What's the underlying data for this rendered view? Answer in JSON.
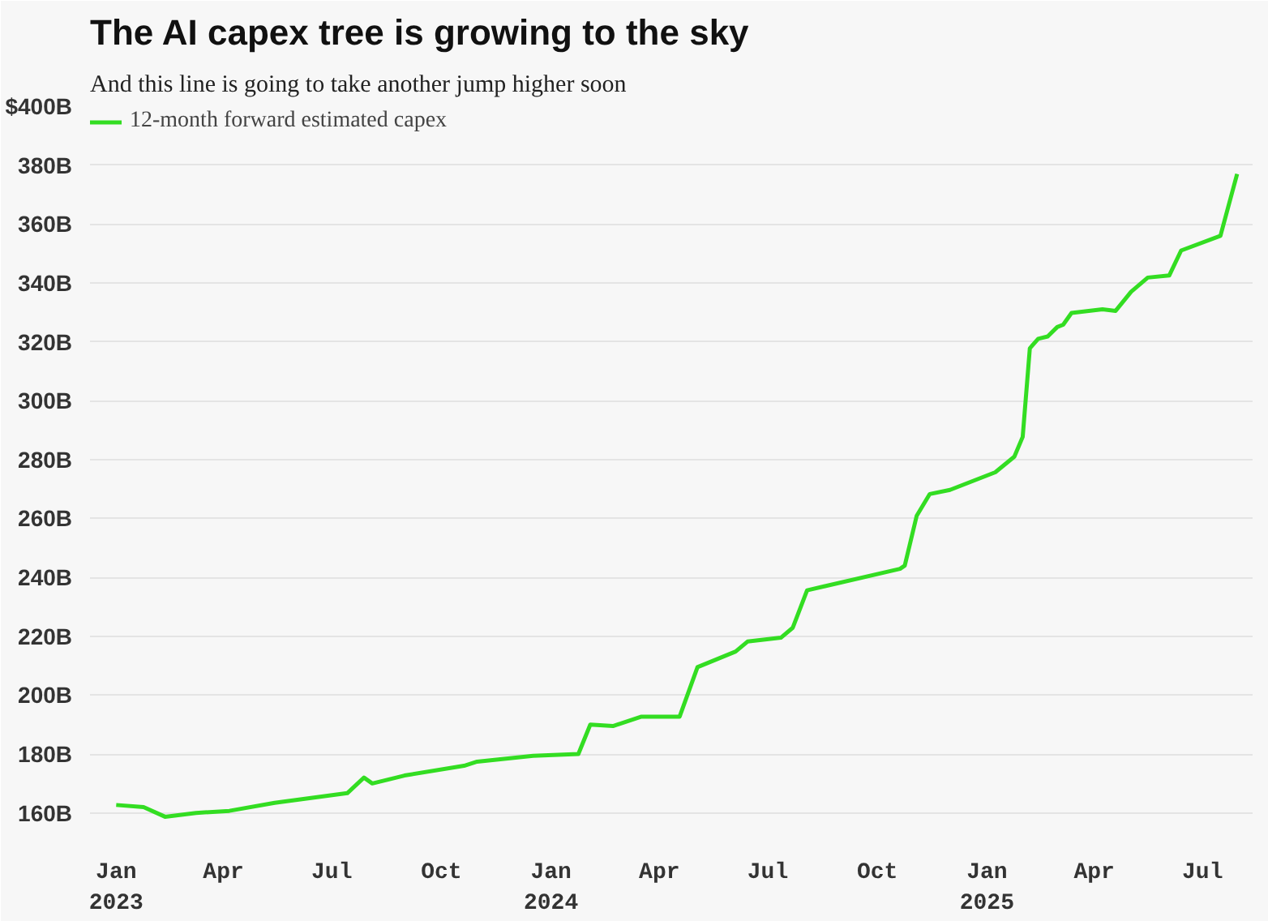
{
  "chart_data": {
    "type": "line",
    "title": "The AI capex tree is growing to the sky",
    "subtitle": "And this line is going to take another jump higher soon",
    "x": [
      "2023-01-01",
      "2023-01-24",
      "2023-02-11",
      "2023-03-09",
      "2023-04-06",
      "2023-05-14",
      "2023-07-14",
      "2023-07-28",
      "2023-08-04",
      "2023-08-31",
      "2023-10-20",
      "2023-10-31",
      "2023-12-17",
      "2024-01-24",
      "2024-02-03",
      "2024-02-22",
      "2024-03-17",
      "2024-04-18",
      "2024-05-03",
      "2024-06-04",
      "2024-06-14",
      "2024-07-12",
      "2024-07-22",
      "2024-08-03",
      "2024-10-20",
      "2024-10-24",
      "2024-11-03",
      "2024-11-14",
      "2024-12-01",
      "2025-01-08",
      "2025-01-24",
      "2025-01-31",
      "2025-02-06",
      "2025-02-13",
      "2025-02-21",
      "2025-03-01",
      "2025-03-06",
      "2025-03-13",
      "2025-04-08",
      "2025-04-19",
      "2025-05-02",
      "2025-05-16",
      "2025-06-03",
      "2025-06-13",
      "2025-07-16",
      "2025-07-30"
    ],
    "series": [
      {
        "name": "12-month forward estimated capex",
        "color": "#33dd22",
        "values": [
          162.7,
          162,
          158.7,
          160,
          160.7,
          163.4,
          166.7,
          172,
          170,
          172.7,
          176,
          177.4,
          179.4,
          180,
          190,
          189.5,
          192.7,
          192.7,
          209.5,
          214.8,
          218.2,
          219.5,
          222.9,
          235.6,
          242.9,
          244,
          260.9,
          268.3,
          269.7,
          275.7,
          281,
          287.7,
          317.8,
          321,
          321.8,
          325,
          325.8,
          329.8,
          331,
          330.5,
          337,
          341.8,
          342.5,
          351,
          356,
          377
        ]
      }
    ],
    "xlim": [
      "2022-12-10",
      "2025-08-12"
    ],
    "xticks": [
      {
        "value": "2023-01-01",
        "label": "Jan\n2023"
      },
      {
        "value": "2023-04-01",
        "label": "Apr"
      },
      {
        "value": "2023-07-01",
        "label": "Jul"
      },
      {
        "value": "2023-10-01",
        "label": "Oct"
      },
      {
        "value": "2024-01-01",
        "label": "Jan\n2024"
      },
      {
        "value": "2024-04-01",
        "label": "Apr"
      },
      {
        "value": "2024-07-01",
        "label": "Jul"
      },
      {
        "value": "2024-10-01",
        "label": "Oct"
      },
      {
        "value": "2025-01-01",
        "label": "Jan\n2025"
      },
      {
        "value": "2025-04-01",
        "label": "Apr"
      },
      {
        "value": "2025-07-01",
        "label": "Jul"
      }
    ],
    "ylim": [
      150,
      400
    ],
    "yticks": [
      {
        "value": 160,
        "label": "160B"
      },
      {
        "value": 180,
        "label": "180B"
      },
      {
        "value": 200,
        "label": "200B"
      },
      {
        "value": 220,
        "label": "220B"
      },
      {
        "value": 240,
        "label": "240B"
      },
      {
        "value": 260,
        "label": "260B"
      },
      {
        "value": 280,
        "label": "280B"
      },
      {
        "value": 300,
        "label": "300B"
      },
      {
        "value": 320,
        "label": "320B"
      },
      {
        "value": 340,
        "label": "340B"
      },
      {
        "value": 360,
        "label": "360B"
      },
      {
        "value": 380,
        "label": "380B"
      },
      {
        "value": 400,
        "label": "$400B"
      }
    ],
    "grid": "y",
    "legend": "top left",
    "line_style": "solid",
    "marker": "none"
  }
}
